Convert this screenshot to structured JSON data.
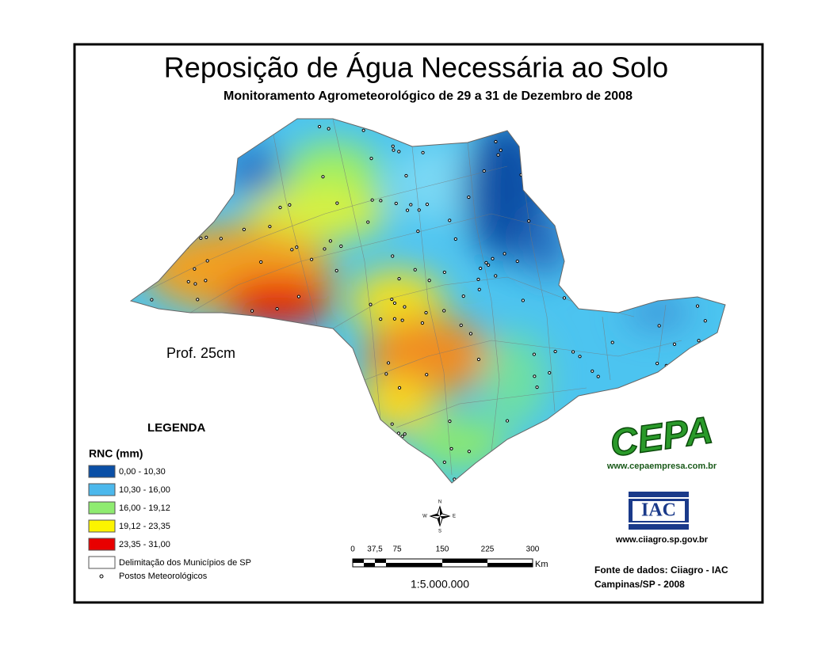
{
  "title": "Reposição de Água Necessária ao Solo",
  "subtitle": "Monitoramento Agrometeorológico de 29 a 31 de Dezembro de 2008",
  "depth_label": "Prof. 25cm",
  "legend": {
    "title": "LEGENDA",
    "variable": "RNC (mm)",
    "classes": [
      {
        "label": "0,00 - 10,30",
        "color": "#0a4fa6"
      },
      {
        "label": "10,30 - 16,00",
        "color": "#4cb8ec"
      },
      {
        "label": "16,00 - 19,12",
        "color": "#8fec70"
      },
      {
        "label": "19,12 - 23,35",
        "color": "#fcf400"
      },
      {
        "label": "23,35 - 31,00",
        "color": "#e80000"
      }
    ],
    "boundaries": "Delimitação dos Municípios de SP",
    "stations": "Postos Meteorológicos"
  },
  "compass": {
    "north": "N",
    "south": "S",
    "east": "E",
    "west": "W"
  },
  "scale": {
    "ticks": [
      "0",
      "37,5",
      "75",
      "150",
      "225",
      "300"
    ],
    "unit": "Km",
    "ratio": "1:5.000.000"
  },
  "logos": {
    "cepa": "CEPA",
    "cepa_url": "www.cepaempresa.com.br",
    "iac": "IAC",
    "iac_url": "www.ciiagro.sp.gov.br"
  },
  "source": [
    "Fonte de dados: Ciiagro - IAC",
    "Campinas/SP - 2008"
  ]
}
